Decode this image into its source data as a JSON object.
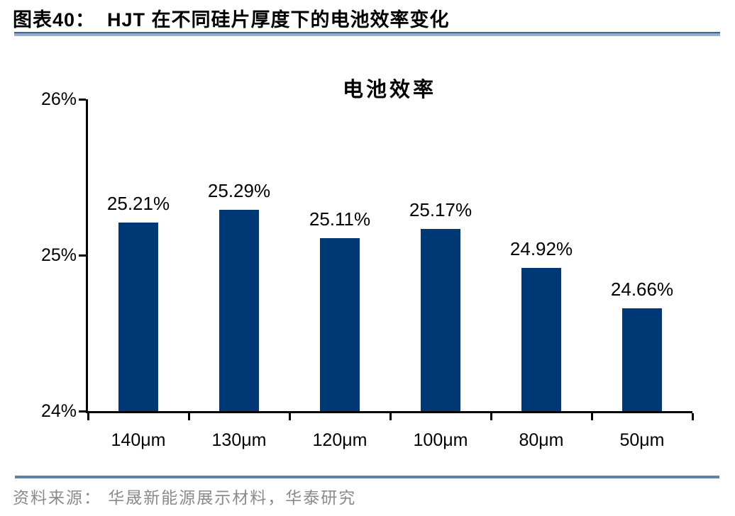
{
  "header": {
    "title": "图表40：  HJT 在不同硅片厚度下的电池效率变化"
  },
  "chart_data": {
    "type": "bar",
    "title": "电池效率",
    "categories": [
      "140μm",
      "130μm",
      "120μm",
      "100μm",
      "80μm",
      "50μm"
    ],
    "values": [
      25.21,
      25.29,
      25.11,
      25.17,
      24.92,
      24.66
    ],
    "value_labels": [
      "25.21%",
      "25.29%",
      "25.11%",
      "25.17%",
      "24.92%",
      "24.66%"
    ],
    "ylim": [
      24,
      26
    ],
    "yticks": [
      {
        "value": 26,
        "label": "26%"
      },
      {
        "value": 25,
        "label": "25%"
      },
      {
        "value": 24,
        "label": "24%"
      }
    ],
    "xlabel": "",
    "ylabel": "",
    "grid": false,
    "legend": false,
    "bar_color": "#003876"
  },
  "footer": {
    "source": "资料来源： 华晟新能源展示材料，华泰研究"
  },
  "colors": {
    "bar": "#003876",
    "axis": "#000000",
    "header_rule_dark": "#44618f",
    "header_rule_light": "#9db3d6",
    "footer_rule": "#5f82a8",
    "source_text": "#8a8a8a"
  }
}
